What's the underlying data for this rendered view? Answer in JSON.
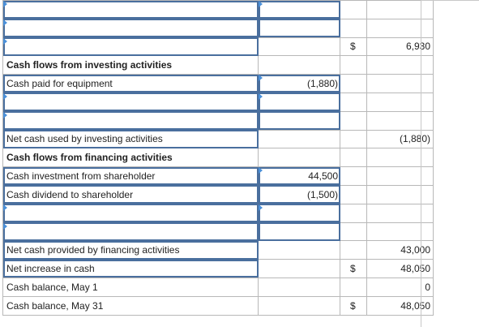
{
  "rows": {
    "r3_dollar": "$",
    "r3_total": "6,930",
    "investing_header": "Cash flows from investing activities",
    "cash_paid_equipment": "Cash paid for equipment",
    "cash_paid_equipment_amt": "(1,880)",
    "net_investing_label": "Net cash used by investing activities",
    "net_investing_total": "(1,880)",
    "financing_header": "Cash flows from financing activities",
    "investment_label": "Cash investment from shareholder",
    "investment_amt": "44,500",
    "dividend_label": "Cash dividend to shareholder",
    "dividend_amt": "(1,500)",
    "net_financing_label": "Net cash provided by financing activities",
    "net_financing_total": "43,000",
    "net_increase_label": "Net increase in cash",
    "net_increase_dollar": "$",
    "net_increase_total": "48,050",
    "balance_may1_label": "Cash balance, May 1",
    "balance_may1_total": "0",
    "balance_may31_label": "Cash balance, May 31",
    "balance_may31_dollar": "$",
    "balance_may31_total": "48,050"
  },
  "colors": {
    "input_border": "#4a6f9e",
    "grid": "#b8b8b8",
    "marker": "#4a90d9"
  }
}
